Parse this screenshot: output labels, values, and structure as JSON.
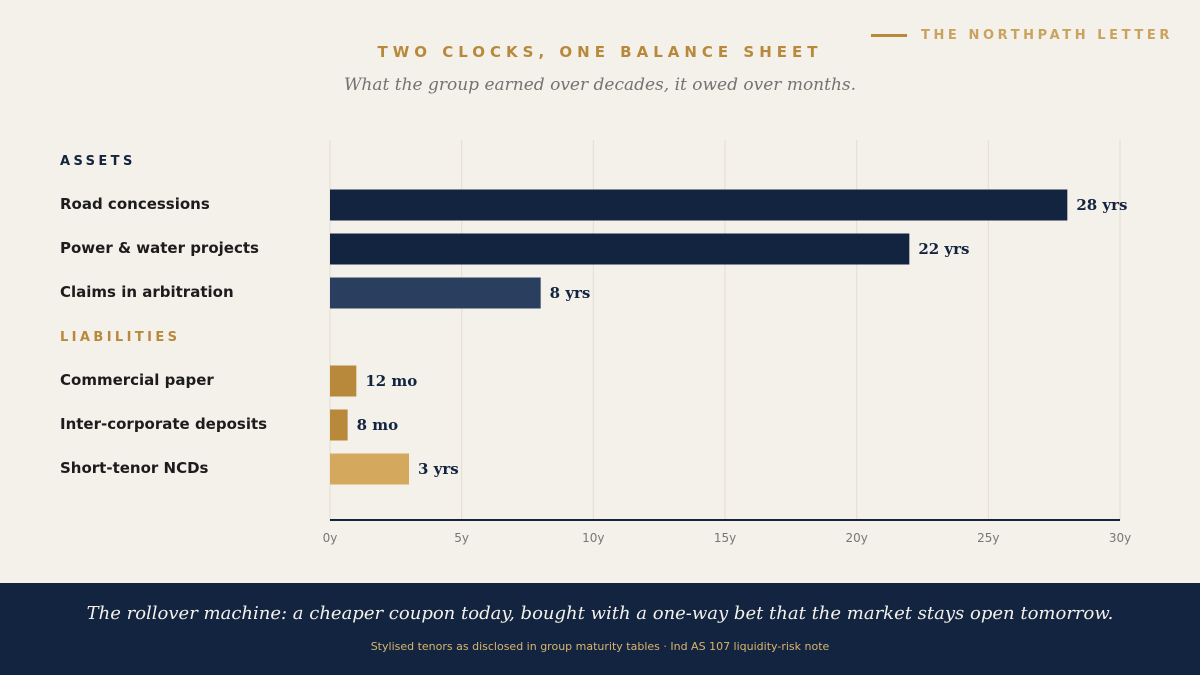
{
  "brand": {
    "text": "THE NORTHPATH LETTER"
  },
  "colors": {
    "navy": "#12243f",
    "navy_light": "#2a3f5f",
    "gold": "#b8893b",
    "gold_light": "#d4a85d",
    "background": "#f4f0ea"
  },
  "chart_data": {
    "type": "bar",
    "orientation": "horizontal",
    "title": "TWO CLOCKS, ONE BALANCE SHEET",
    "subtitle": "What the group earned over decades, it owed over months.",
    "xlim": [
      0,
      30
    ],
    "x_ticks": [
      "0y",
      "5y",
      "10y",
      "15y",
      "20y",
      "25y",
      "30y"
    ],
    "x_tick_values": [
      0,
      5,
      10,
      15,
      20,
      25,
      30
    ],
    "grid": true,
    "groups": [
      {
        "label": "ASSETS",
        "color": "#12243f",
        "items": [
          {
            "label": "Road concessions",
            "value": 28,
            "display": "28 yrs",
            "color": "#12243f"
          },
          {
            "label": "Power & water projects",
            "value": 22,
            "display": "22 yrs",
            "color": "#12243f"
          },
          {
            "label": "Claims in arbitration",
            "value": 8,
            "display": "8 yrs",
            "color": "#2a3f5f"
          }
        ]
      },
      {
        "label": "LIABILITIES",
        "color": "#b8893b",
        "items": [
          {
            "label": "Commercial paper",
            "value": 1,
            "display": "12 mo",
            "color": "#b8893b"
          },
          {
            "label": "Inter-corporate deposits",
            "value": 0.67,
            "display": "8 mo",
            "color": "#b8893b"
          },
          {
            "label": "Short-tenor NCDs",
            "value": 3,
            "display": "3 yrs",
            "color": "#d4a85d"
          }
        ]
      }
    ]
  },
  "footer": {
    "headline": "The rollover machine: a cheaper coupon today, bought with a one-way bet that the market stays open tomorrow.",
    "note": "Stylised tenors as disclosed in group maturity tables · Ind AS 107 liquidity-risk note"
  }
}
